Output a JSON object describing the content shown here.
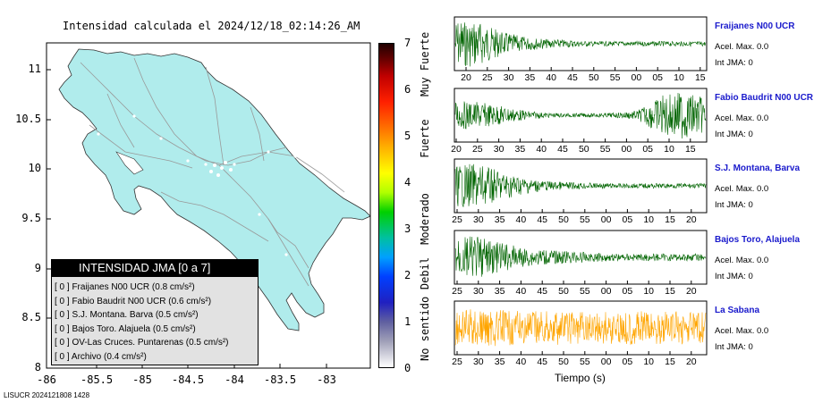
{
  "map": {
    "title": "Intensidad calculada el 2024/12/18_02:14:26_AM",
    "lon_ticks": [
      "-86",
      "-85.5",
      "-85",
      "-84.5",
      "-84",
      "-83.5",
      "-83"
    ],
    "lat_ticks": [
      "11",
      "10.5",
      "10",
      "9.5",
      "9",
      "8.5",
      "8"
    ],
    "land_color": "#b0ecec",
    "legend": {
      "title": "INTENSIDAD JMA [0 a 7]",
      "items": [
        "[ 0 ]  Fraijanes N00 UCR (0.8 cm/s²)",
        "[ 0 ]  Fabio Baudrit N00 UCR (0.6 cm/s²)",
        "[ 0 ]  S.J. Montana. Barva (0.5 cm/s²)",
        "[ 0 ]  Bajos Toro. Alajuela (0.5 cm/s²)",
        "[ 0 ]  OV-Las Cruces. Puntarenas (0.5 cm/s²)",
        "[ 0 ]  Archivo (0.4 cm/s²)"
      ]
    }
  },
  "colorbar": {
    "ticks": [
      "7",
      "6",
      "5",
      "4",
      "3",
      "2",
      "1",
      "0"
    ],
    "categories": [
      "Muy Fuerte",
      "Fuerte",
      "Moderado",
      "Debil",
      "No sentido"
    ]
  },
  "stations": [
    {
      "name": "Fraijanes N00 UCR",
      "acel": "Acel. Max. 0.0",
      "int": "Int JMA: 0",
      "ticks": [
        "20",
        "25",
        "30",
        "35",
        "40",
        "45",
        "50",
        "55",
        "00",
        "05",
        "10",
        "15"
      ],
      "color": "#006400"
    },
    {
      "name": "Fabio Baudrit N00 UCR",
      "acel": "Acel. Max. 0.0",
      "int": "Int JMA: 0",
      "ticks": [
        "20",
        "25",
        "30",
        "35",
        "40",
        "45",
        "50",
        "55",
        "00",
        "05",
        "10",
        "15"
      ],
      "color": "#006400"
    },
    {
      "name": "S.J. Montana, Barva",
      "acel": "Acel. Max. 0.0",
      "int": "Int JMA: 0",
      "ticks": [
        "25",
        "30",
        "35",
        "40",
        "45",
        "50",
        "55",
        "00",
        "05",
        "10",
        "15",
        "20"
      ],
      "color": "#006400"
    },
    {
      "name": "Bajos Toro, Alajuela",
      "acel": "Acel. Max. 0.0",
      "int": "Int JMA: 0",
      "ticks": [
        "25",
        "30",
        "35",
        "40",
        "45",
        "50",
        "55",
        "00",
        "05",
        "10",
        "15",
        "20"
      ],
      "color": "#006400"
    },
    {
      "name": "La Sabana",
      "acel": "Acel. Max. 0.0",
      "int": "Int JMA: 0",
      "ticks": [
        "25",
        "30",
        "35",
        "40",
        "45",
        "50",
        "55",
        "00",
        "05",
        "10",
        "15",
        "20"
      ],
      "color": "#ffa500"
    }
  ],
  "xaxis_label": "Tiempo (s)",
  "footer": "LISUCR 2024121808 1428",
  "chart_data": [
    {
      "type": "other",
      "title": "Intensidad calculada el 2024/12/18_02:14:26_AM",
      "xlim": [
        -86,
        -82.55
      ],
      "ylim": [
        8,
        11.2
      ]
    },
    {
      "type": "line",
      "xlabel": "Tiempo (s)",
      "series": [
        {
          "name": "Fraijanes N00 UCR",
          "envelope": [
            1.0,
            0.95,
            0.5,
            0.3,
            0.2,
            0.15,
            0.1,
            0.1,
            0.1,
            0.1,
            0.1,
            0.1
          ]
        },
        {
          "name": "Fabio Baudrit N00 UCR",
          "envelope": [
            0.6,
            0.55,
            0.4,
            0.2,
            0.1,
            0.08,
            0.08,
            0.1,
            0.2,
            0.8,
            1.0,
            0.7
          ]
        },
        {
          "name": "S.J. Montana, Barva",
          "envelope": [
            0.9,
            0.9,
            0.6,
            0.35,
            0.2,
            0.15,
            0.12,
            0.1,
            0.1,
            0.1,
            0.1,
            0.1
          ]
        },
        {
          "name": "Bajos Toro, Alajuela",
          "envelope": [
            0.9,
            0.85,
            0.6,
            0.4,
            0.3,
            0.25,
            0.2,
            0.15,
            0.15,
            0.15,
            0.15,
            0.15
          ]
        },
        {
          "name": "La Sabana",
          "envelope": [
            0.8,
            0.8,
            0.75,
            0.7,
            0.7,
            0.7,
            0.7,
            0.7,
            0.7,
            0.7,
            0.7,
            0.7
          ]
        }
      ]
    }
  ]
}
